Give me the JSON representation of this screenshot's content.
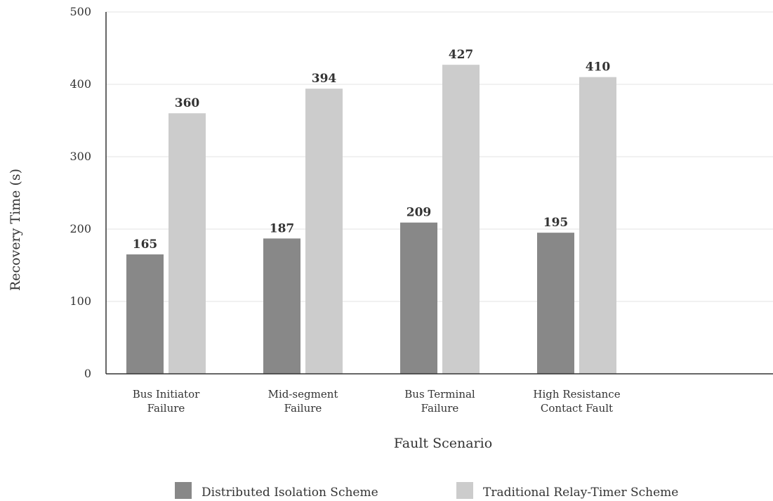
{
  "chart_data": {
    "type": "bar",
    "title": "",
    "xlabel": "Fault Scenario",
    "ylabel": "Recovery Time (s)",
    "ylim": [
      0,
      500
    ],
    "yticks": [
      0,
      100,
      200,
      300,
      400,
      500
    ],
    "grid": true,
    "legend_position": "bottom",
    "categories": [
      [
        "Bus Initiator",
        "Failure"
      ],
      [
        "Mid-segment",
        "Failure"
      ],
      [
        "Bus Terminal",
        "Failure"
      ],
      [
        "High Resistance",
        "Contact Fault"
      ]
    ],
    "series": [
      {
        "name": "Distributed Isolation Scheme",
        "color": "#888888",
        "values": [
          165,
          187,
          209,
          195
        ]
      },
      {
        "name": "Traditional Relay-Timer Scheme",
        "color": "#cccccc",
        "values": [
          360,
          394,
          427,
          410
        ]
      }
    ]
  }
}
